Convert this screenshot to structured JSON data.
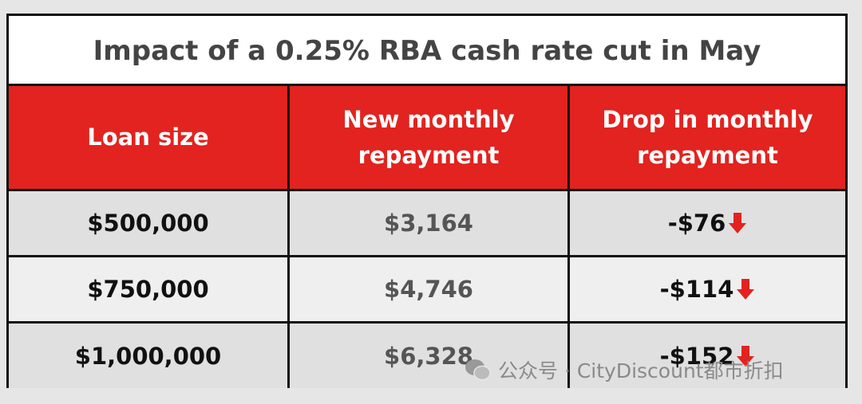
{
  "title": "Impact of a 0.25% RBA cash rate cut in May",
  "table": {
    "header": [
      "Loan size",
      "New monthly repayment",
      "Drop in monthly repayment"
    ],
    "rows": [
      [
        "$500,000",
        "$3,164",
        "-$76"
      ],
      [
        "$750,000",
        "$4,746",
        "-$114"
      ],
      [
        "$1,000,000",
        "$6,328",
        "-$152"
      ]
    ]
  },
  "watermark": "公众号 · CityDiscount都市折扣"
}
